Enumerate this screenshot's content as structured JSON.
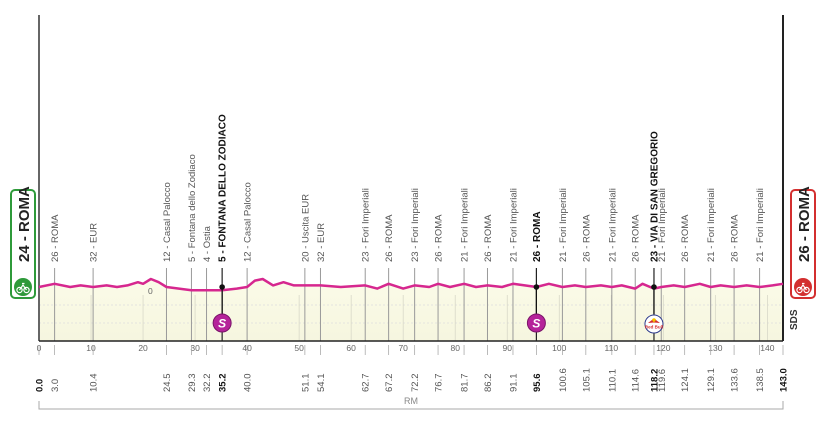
{
  "chart_data": {
    "type": "area",
    "title": "",
    "xlabel": "km",
    "ylabel": "",
    "xlim": [
      0,
      143.0
    ],
    "grid": true,
    "x_ticks": [
      0,
      10,
      20,
      30,
      40,
      50,
      60,
      70,
      80,
      90,
      100,
      110,
      120,
      130,
      140
    ],
    "elevation_profile": {
      "color": "#d6278f",
      "start_elevation_m": 24,
      "finish_elevation_m": 26,
      "profile_km": [
        0,
        3,
        6,
        8,
        10.4,
        13,
        15,
        17,
        19,
        20,
        21.5,
        23,
        24.5,
        29.3,
        35.2,
        38,
        40,
        41.5,
        43,
        45,
        47,
        49,
        51.1,
        54.1,
        58,
        62.7,
        65,
        67.2,
        70,
        72.2,
        75,
        76.7,
        79,
        81.7,
        84,
        86.2,
        89,
        91.1,
        95.6,
        98,
        100.6,
        103,
        105.1,
        108,
        110.1,
        112,
        114.6,
        116,
        118.2,
        119.6,
        122,
        124.1,
        127,
        129.1,
        131,
        133.6,
        136,
        138.5,
        141,
        143.0
      ],
      "profile_m": [
        24,
        26,
        24,
        25,
        24,
        25,
        24,
        25,
        27,
        26,
        29,
        27,
        24,
        22,
        22,
        23,
        24,
        28,
        29,
        25,
        27,
        25,
        25,
        25,
        24,
        25,
        23,
        26,
        23,
        25,
        24,
        26,
        24,
        26,
        24,
        25,
        24,
        26,
        24,
        26,
        24,
        25,
        24,
        25,
        24,
        25,
        23,
        26,
        23,
        24,
        25,
        24,
        26,
        24,
        25,
        24,
        25,
        24,
        25,
        26
      ]
    },
    "waypoints": [
      {
        "km": "0.0",
        "label": "",
        "bold": true
      },
      {
        "km": "3.0",
        "label": "26 - ROMA",
        "bold": false
      },
      {
        "km": "10.4",
        "label": "32 - EUR",
        "bold": false
      },
      {
        "km": "24.5",
        "label": "12 - Casal Palocco",
        "bold": false
      },
      {
        "km": "29.3",
        "label": "5 - Fontana dello Zodiaco",
        "bold": false
      },
      {
        "km": "32.2",
        "label": "4 - Ostia",
        "bold": false
      },
      {
        "km": "35.2",
        "label": "5 - FONTANA DELLO ZODIACO",
        "bold": true,
        "sprint": "S"
      },
      {
        "km": "40.0",
        "label": "12 - Casal Palocco",
        "bold": false
      },
      {
        "km": "51.1",
        "label": "20 - Uscita EUR",
        "bold": false
      },
      {
        "km": "54.1",
        "label": "32 - EUR",
        "bold": false
      },
      {
        "km": "62.7",
        "label": "23 - Fori Imperiali",
        "bold": false
      },
      {
        "km": "67.2",
        "label": "26 - ROMA",
        "bold": false
      },
      {
        "km": "72.2",
        "label": "23 - Fori Imperiali",
        "bold": false
      },
      {
        "km": "76.7",
        "label": "26 - ROMA",
        "bold": false
      },
      {
        "km": "81.7",
        "label": "21 - Fori Imperiali",
        "bold": false
      },
      {
        "km": "86.2",
        "label": "26 - ROMA",
        "bold": false
      },
      {
        "km": "91.1",
        "label": "21 - Fori Imperiali",
        "bold": false
      },
      {
        "km": "95.6",
        "label": "26 - ROMA",
        "bold": true,
        "sprint": "S"
      },
      {
        "km": "100.6",
        "label": "21 - Fori Imperiali",
        "bold": false
      },
      {
        "km": "105.1",
        "label": "26 - ROMA",
        "bold": false
      },
      {
        "km": "110.1",
        "label": "21 - Fori Imperiali",
        "bold": false
      },
      {
        "km": "114.6",
        "label": "26 - ROMA",
        "bold": false
      },
      {
        "km": "118.2",
        "label": "23 - VIA DI SAN GREGORIO",
        "bold": true,
        "sprint": "RedBull"
      },
      {
        "km": "119.6",
        "label": "21 - Fori Imperiali",
        "bold": false
      },
      {
        "km": "124.1",
        "label": "26 - ROMA",
        "bold": false
      },
      {
        "km": "129.1",
        "label": "21 - Fori Imperiali",
        "bold": false
      },
      {
        "km": "133.6",
        "label": "26 - ROMA",
        "bold": false
      },
      {
        "km": "138.5",
        "label": "21 - Fori Imperiali",
        "bold": false
      },
      {
        "km": "143.0",
        "label": "",
        "bold": true
      }
    ],
    "annotations": [
      "0"
    ]
  },
  "start": {
    "label": "24 - ROMA",
    "color": "#2e9a3a"
  },
  "finish": {
    "label": "26 - ROMA",
    "color": "#d32f2f"
  },
  "sds_label": "SDS",
  "region": {
    "label": "RM"
  },
  "sprint_badge": {
    "letter": "S",
    "color": "#b5239a"
  },
  "redbull_badge": {
    "text": "Red Bull"
  }
}
